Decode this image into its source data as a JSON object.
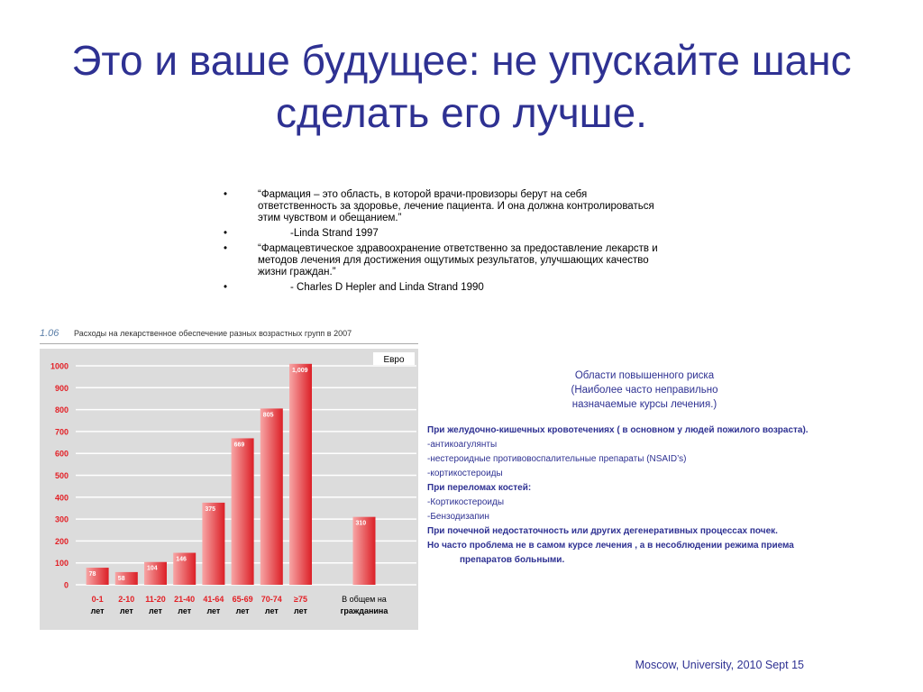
{
  "slide": {
    "title": "Это и ваше будущее: не упускайте шанс сделать его лучше.",
    "quotes": [
      "“Фармация – это область, в которой врачи-провизоры берут на себя ответственность  за здоровье, лечение пациента. И она должна контролироваться  этим чувством и обещанием.”",
      "-Linda Strand 1997",
      "“Фармацевтическое здравоохранение ответственно за предоставление лекарств и методов лечения для достижения ощутимых результатов, улучшающих качество жизни граждан.”",
      "- Charles D Hepler and Linda Strand 1990"
    ],
    "risk": {
      "title_lines": [
        "Области повышенного риска",
        "(Наиболее часто неправильно",
        "назначаемые  курсы лечения.)"
      ],
      "items": [
        {
          "text": "При желудочно-кишечных кровотечениях ( в основном у  людей пожилого возраста).",
          "bold": true
        },
        {
          "text": "-антикоагулянты",
          "bold": false
        },
        {
          "text": "-нестероидные противовоспалительные препараты (NSAID’s)",
          "bold": false
        },
        {
          "text": "-кортикостероиды",
          "bold": false
        },
        {
          "text": "При переломах костей:",
          "bold": true
        },
        {
          "text": "-Кортикостероиды",
          "bold": false
        },
        {
          "text": "-Бензодизапин",
          "bold": false
        },
        {
          "text": "При почечной недостаточность или других дегенеративных процессах почек.",
          "bold": true
        },
        {
          "text": "Но часто проблема не в самом курсе лечения , а в несоблюдении режима приема",
          "bold": true
        },
        {
          "text": "препаратов  больными.",
          "bold": true,
          "indent": true
        }
      ]
    },
    "footer": "Moscow, University, 2010 Sept 15"
  },
  "chart_data": {
    "type": "bar",
    "figure_number": "1.06",
    "title": "Расходы на лекарственное обеспечение разных возрастных групп в 2007",
    "unit_label": "Евро",
    "ylim": [
      0,
      1000
    ],
    "yticks": [
      0,
      100,
      200,
      300,
      400,
      500,
      600,
      700,
      800,
      900,
      1000
    ],
    "grid": true,
    "categories": [
      {
        "top": "0-1",
        "bottom": "лет"
      },
      {
        "top": "2-10",
        "bottom": "лет"
      },
      {
        "top": "11-20",
        "bottom": "лет"
      },
      {
        "top": "21-40",
        "bottom": "лет"
      },
      {
        "top": "41-64",
        "bottom": "лет"
      },
      {
        "top": "65-69",
        "bottom": "лет"
      },
      {
        "top": "70-74",
        "bottom": "лет"
      },
      {
        "top": "≥75",
        "bottom": "лет"
      },
      {
        "top": "В общем на",
        "bottom": "гражданина"
      }
    ],
    "values": [
      78,
      58,
      104,
      146,
      375,
      669,
      805,
      1009,
      310
    ],
    "value_labels": [
      "78",
      "58",
      "104",
      "146",
      "375",
      "669",
      "805",
      "1,009",
      "310"
    ],
    "colors": {
      "bar_light": "#f7a6a6",
      "bar_dark": "#dc1f26",
      "background": "#dcdcdc",
      "axis_text": "#e31e24",
      "grid": "#ffffff"
    }
  }
}
